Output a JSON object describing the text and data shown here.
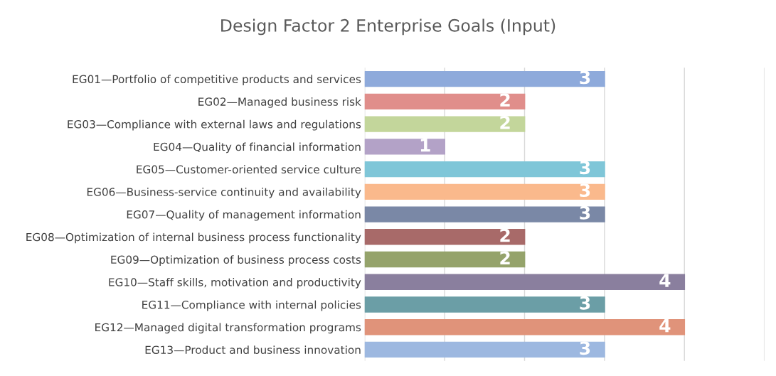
{
  "chart_data": {
    "type": "bar",
    "orientation": "horizontal",
    "title": "Design Factor 2 Enterprise Goals (Input)",
    "categories": [
      "EG01—Portfolio of competitive products and services",
      "EG02—Managed business risk",
      "EG03—Compliance with external laws and regulations",
      "EG04—Quality of financial information",
      "EG05—Customer-oriented service culture",
      "EG06—Business-service continuity and availability",
      "EG07—Quality of management information",
      "EG08—Optimization of internal business process functionality",
      "EG09—Optimization of business process costs",
      "EG10—Staff skills, motivation and productivity",
      "EG11—Compliance with internal policies",
      "EG12—Managed digital transformation programs",
      "EG13—Product and business innovation"
    ],
    "values": [
      3,
      2,
      2,
      1,
      3,
      3,
      3,
      2,
      2,
      4,
      3,
      4,
      3
    ],
    "colors": [
      "#8eaadb",
      "#e08e8b",
      "#c3d69b",
      "#b3a2c7",
      "#7fc6d8",
      "#fab98c",
      "#7a88a6",
      "#a86a69",
      "#95a36b",
      "#8a7f9e",
      "#6b9ea6",
      "#e0937a",
      "#9db8e0"
    ],
    "xlim": [
      0,
      5
    ],
    "xticks": [
      {
        "value": 0,
        "label": null
      },
      {
        "value": 1,
        "label": null
      },
      {
        "value": 2,
        "label": null
      },
      {
        "value": 3,
        "label": null
      },
      {
        "value": 4,
        "label": null
      },
      {
        "value": 5,
        "label": null
      }
    ],
    "tick_labels": "y",
    "grid": "x",
    "data_labels": true
  }
}
